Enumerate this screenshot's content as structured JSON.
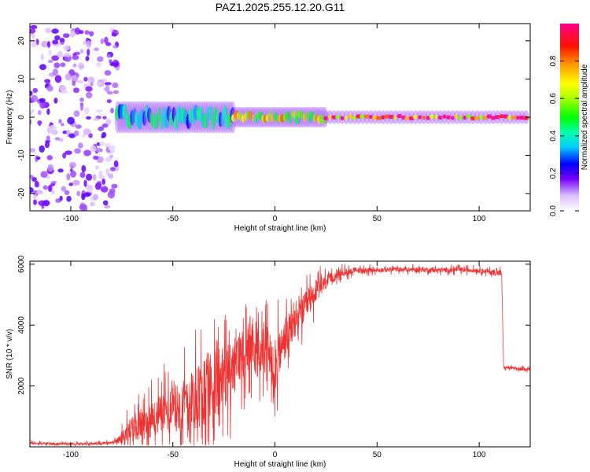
{
  "page": {
    "title": "PAZ1.2025.255.12.20.G11"
  },
  "colors": {
    "snr_line": "#ee3333",
    "axis": "#000000",
    "background": "#ffffff"
  },
  "chart_data": [
    {
      "type": "heatmap",
      "title": "PAZ1.2025.255.12.20.G11",
      "xlabel": "Height of straight line (km)",
      "ylabel": "Frequency (Hz)",
      "xlim": [
        -120,
        125
      ],
      "ylim": [
        -24.5,
        24.5
      ],
      "xticks": [
        -100,
        -50,
        0,
        50,
        100
      ],
      "yticks": [
        -20,
        -10,
        0,
        10,
        20
      ],
      "colorbar": {
        "label": "Normalized spectral amplitude",
        "range": [
          0,
          1
        ],
        "ticks": [
          "0.0",
          "0.2",
          "0.4",
          "0.6",
          "0.8"
        ]
      },
      "regions": [
        {
          "name": "noise",
          "x_range": [
            -120,
            -77
          ],
          "freq_spread": 24,
          "amplitude": 0.15
        },
        {
          "name": "broad-signal",
          "x_range": [
            -77,
            -20
          ],
          "freq_spread": 3,
          "amplitude": 0.4
        },
        {
          "name": "narrowing-signal",
          "x_range": [
            -20,
            25
          ],
          "freq_spread": 1.5,
          "amplitude": 0.7
        },
        {
          "name": "tone",
          "x_range": [
            25,
            125
          ],
          "freq_spread": 0.6,
          "amplitude": 0.95
        }
      ]
    },
    {
      "type": "line",
      "xlabel": "Height of straight line (km)",
      "ylabel": "SNR (10 * v/v)",
      "xlim": [
        -120,
        125
      ],
      "ylim": [
        0,
        6100
      ],
      "xticks": [
        -100,
        -50,
        0,
        50,
        100
      ],
      "yticks": [
        2000,
        4000,
        6000
      ],
      "series": [
        {
          "name": "SNR",
          "x": [
            -120,
            -110,
            -100,
            -90,
            -80,
            -77,
            -72,
            -68,
            -64,
            -60,
            -56,
            -52,
            -48,
            -44,
            -40,
            -36,
            -32,
            -28,
            -24,
            -20,
            -16,
            -12,
            -8,
            -4,
            0,
            4,
            8,
            12,
            16,
            20,
            25,
            30,
            35,
            40,
            45,
            50,
            60,
            70,
            80,
            90,
            100,
            105,
            111,
            112,
            115,
            120,
            125
          ],
          "values": [
            120,
            100,
            110,
            100,
            130,
            200,
            500,
            700,
            800,
            900,
            1100,
            1200,
            1300,
            1400,
            1500,
            1800,
            2000,
            2100,
            2300,
            2600,
            3100,
            3300,
            3100,
            3200,
            2600,
            3400,
            3900,
            4300,
            4700,
            5100,
            5400,
            5650,
            5750,
            5800,
            5800,
            5810,
            5830,
            5820,
            5800,
            5820,
            5800,
            5750,
            5700,
            2600,
            2600,
            2550,
            2550
          ],
          "spread": [
            80,
            60,
            60,
            60,
            80,
            150,
            600,
            800,
            900,
            1000,
            1100,
            1200,
            1300,
            1500,
            1700,
            1900,
            2000,
            1800,
            1700,
            1600,
            1400,
            1500,
            1400,
            1300,
            1500,
            1200,
            1000,
            900,
            800,
            600,
            400,
            250,
            200,
            150,
            150,
            130,
            120,
            130,
            130,
            130,
            120,
            150,
            180,
            80,
            80,
            80,
            80
          ]
        }
      ]
    }
  ]
}
